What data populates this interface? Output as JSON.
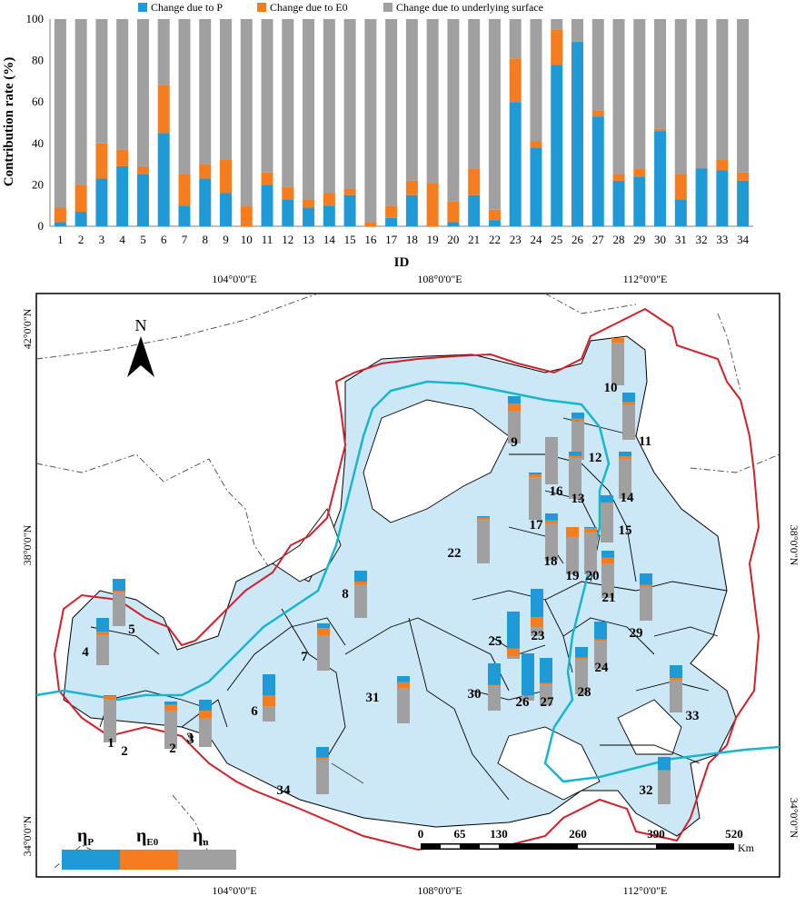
{
  "colors": {
    "p": "#1f9ad6",
    "e0": "#f47d20",
    "n": "#a0a0a0",
    "basin": "#cce8f7",
    "river": "#16b6cc",
    "boundary": "#d0202a"
  },
  "chart_data": {
    "type": "bar",
    "stacked": true,
    "categories": [
      "1",
      "2",
      "3",
      "4",
      "5",
      "6",
      "7",
      "8",
      "9",
      "10",
      "11",
      "12",
      "13",
      "14",
      "15",
      "16",
      "17",
      "18",
      "19",
      "20",
      "21",
      "22",
      "23",
      "24",
      "25",
      "26",
      "27",
      "28",
      "29",
      "30",
      "31",
      "32",
      "33",
      "34"
    ],
    "series": [
      {
        "name": "Change due to P",
        "values": [
          2,
          7,
          23,
          29,
          25,
          45,
          10,
          23,
          16,
          0,
          20,
          13,
          9,
          10,
          15,
          0,
          4,
          15,
          0,
          2,
          15,
          3,
          60,
          38,
          78,
          89,
          53,
          22,
          24,
          46,
          13,
          28,
          27,
          22
        ]
      },
      {
        "name": "Change due to E0",
        "values": [
          7,
          13,
          17,
          8,
          4,
          23,
          15,
          7,
          16,
          10,
          6,
          6,
          4,
          6,
          3,
          2,
          6,
          7,
          21,
          10,
          13,
          5,
          21,
          3,
          17,
          0,
          3,
          3,
          4,
          1,
          12,
          0,
          5,
          4
        ]
      },
      {
        "name": "Change due to underlying surface",
        "values": [
          91,
          80,
          60,
          63,
          71,
          32,
          75,
          70,
          68,
          90,
          74,
          81,
          87,
          84,
          82,
          98,
          90,
          78,
          79,
          88,
          72,
          92,
          19,
          59,
          5,
          11,
          44,
          75,
          72,
          53,
          75,
          72,
          68,
          74
        ]
      }
    ],
    "ylabel": "Contribution rate (%)",
    "xlabel": "ID",
    "ylim": [
      0,
      100
    ],
    "yticks": [
      "0",
      "20",
      "40",
      "60",
      "80",
      "100"
    ],
    "legend_position": "top"
  },
  "map": {
    "lon_labels": [
      "104°0'0\"E",
      "108°0'0\"E",
      "112°0'0\"E"
    ],
    "lat_labels": [
      "42°0'0\"N",
      "38°0'0\"N",
      "34°0'0\"N"
    ],
    "north": "N",
    "scale_ticks": [
      "0",
      "65",
      "130",
      "260",
      "390",
      "520"
    ],
    "scale_unit": "Km",
    "legend_symbols": [
      "η",
      "η",
      "η"
    ],
    "legend_subs": [
      "P",
      "E0",
      "n"
    ],
    "basin_labels": [
      "1",
      "2",
      "3",
      "4",
      "5",
      "6",
      "7",
      "8",
      "9",
      "10",
      "11",
      "12",
      "13",
      "14",
      "15",
      "16",
      "17",
      "18",
      "19",
      "20",
      "21",
      "22",
      "23",
      "24",
      "25",
      "26",
      "27",
      "28",
      "29",
      "30",
      "31",
      "32",
      "33",
      "34"
    ],
    "extra_labels": [
      "2",
      "3"
    ]
  }
}
